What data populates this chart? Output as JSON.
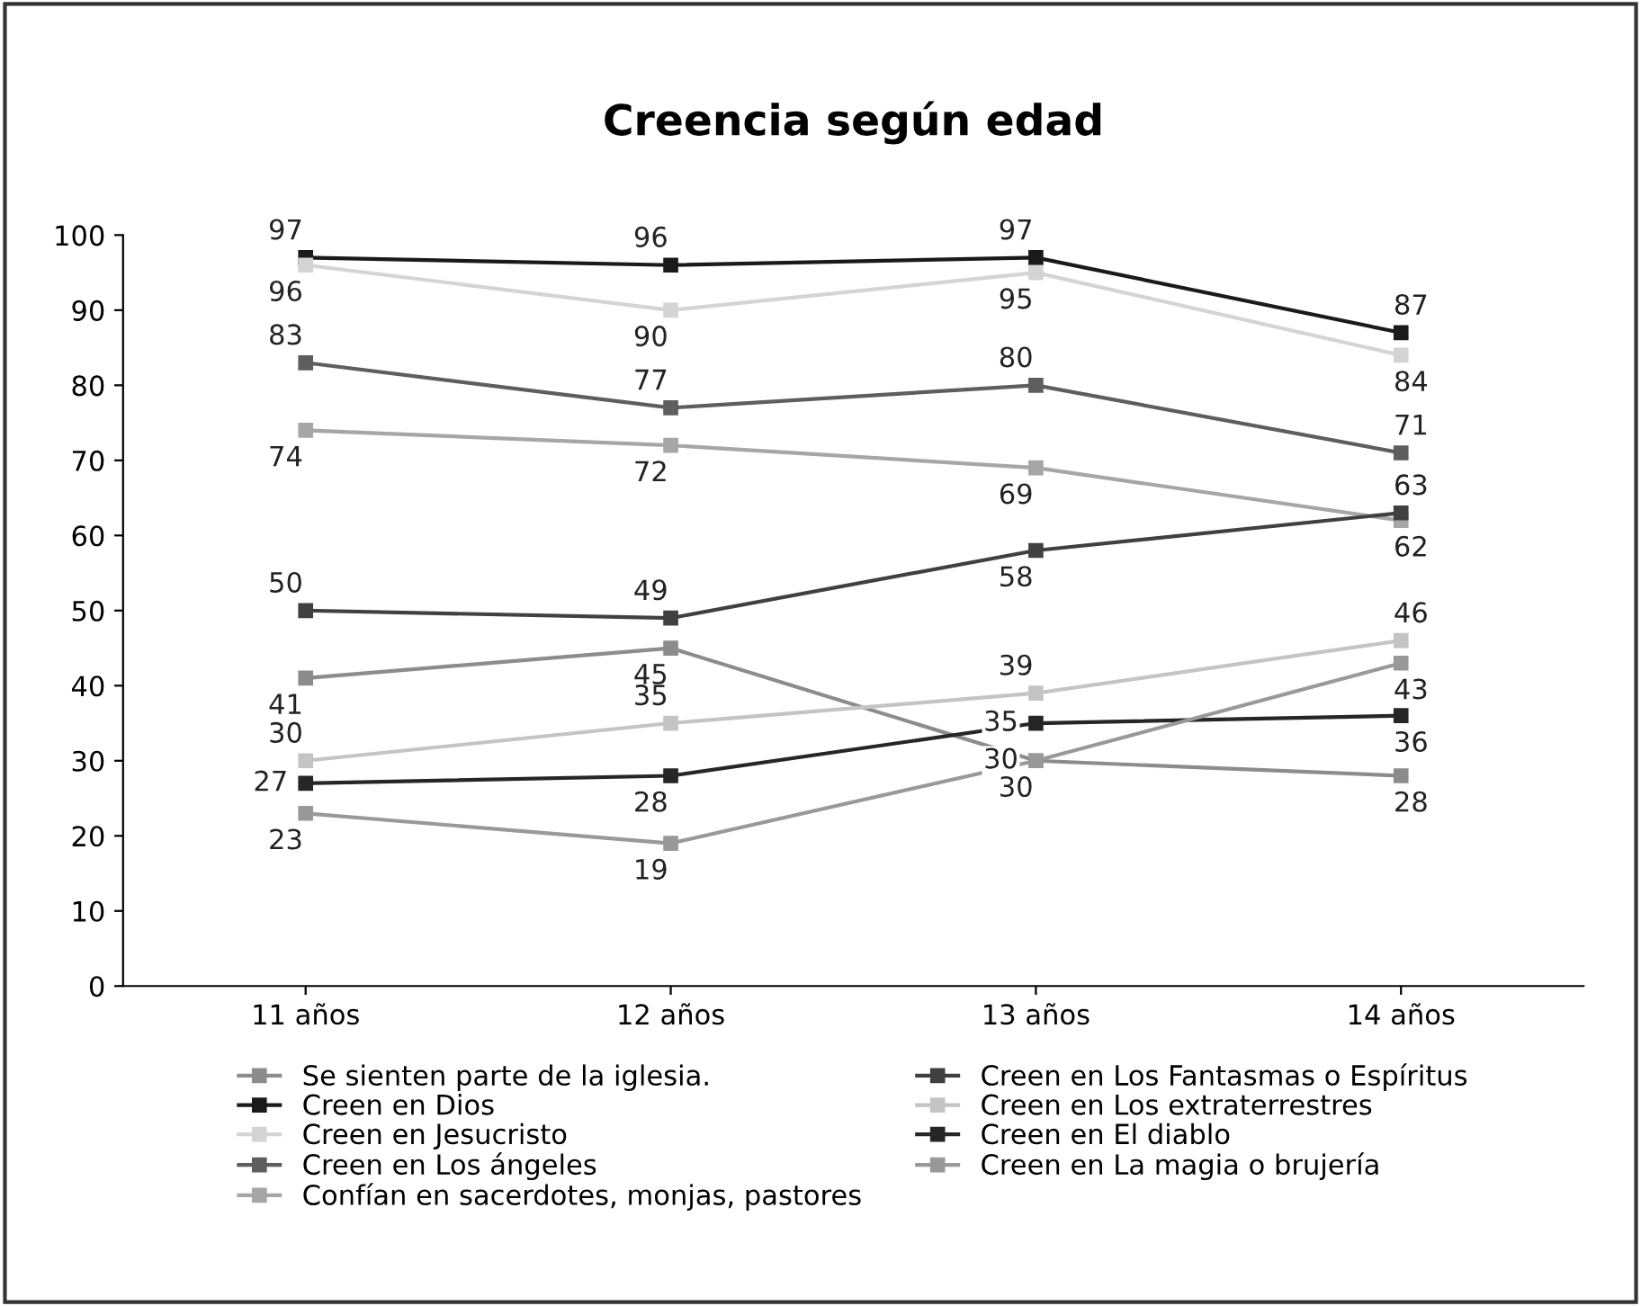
{
  "chart_data": {
    "type": "line",
    "title": "Creencia según edad",
    "categories": [
      "11 años",
      "12 años",
      "13 años",
      "14 años"
    ],
    "ylim": [
      0,
      100
    ],
    "yticks": [
      0,
      10,
      20,
      30,
      40,
      50,
      60,
      70,
      80,
      90,
      100
    ],
    "grid": false,
    "legend": "bottom",
    "marker": "square",
    "line_style": "solid",
    "data_labels": true,
    "series": [
      {
        "name": "Se sienten parte de la iglesia.",
        "color": "#8c8c8c",
        "values": [
          41,
          45,
          30,
          28
        ]
      },
      {
        "name": "Creen en Dios",
        "color": "#1a1a1a",
        "values": [
          97,
          96,
          97,
          87
        ]
      },
      {
        "name": "Creen en Jesucristo",
        "color": "#d4d4d4",
        "values": [
          96,
          90,
          95,
          84
        ]
      },
      {
        "name": "Creen en Los ángeles",
        "color": "#5e5e5e",
        "values": [
          83,
          77,
          80,
          71
        ]
      },
      {
        "name": "Confían en sacerdotes, monjas, pastores",
        "color": "#a6a6a6",
        "values": [
          74,
          72,
          69,
          62
        ]
      },
      {
        "name": "Creen en Los Fantasmas o Espíritus",
        "color": "#404040",
        "values": [
          50,
          49,
          58,
          63
        ]
      },
      {
        "name": "Creen en Los extraterrestres",
        "color": "#c4c4c4",
        "values": [
          30,
          35,
          39,
          46
        ]
      },
      {
        "name": "Creen en El diablo",
        "color": "#262626",
        "values": [
          27,
          28,
          35,
          36
        ]
      },
      {
        "name": "Creen en La magia o brujería",
        "color": "#999999",
        "values": [
          23,
          19,
          30,
          43
        ]
      }
    ]
  }
}
